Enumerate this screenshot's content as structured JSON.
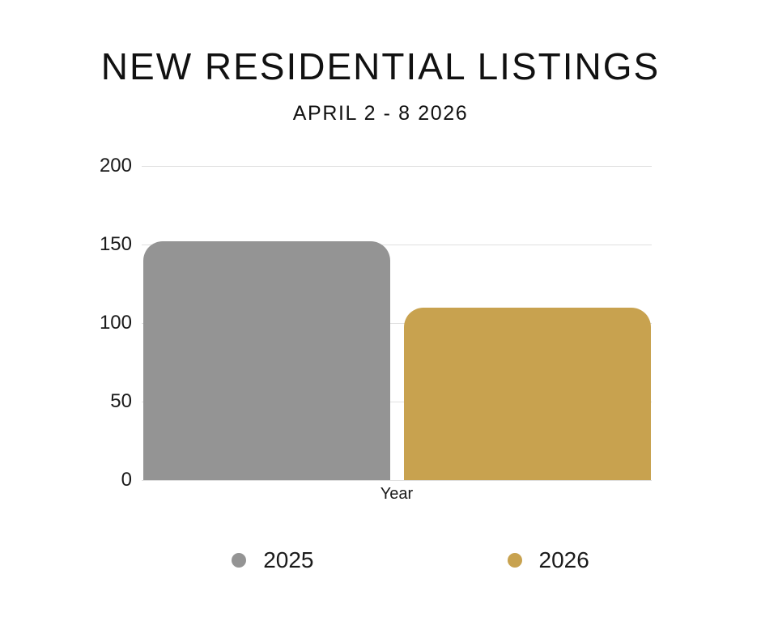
{
  "title": "NEW RESIDENTIAL LISTINGS",
  "subtitle": "APRIL 2 - 8 2026",
  "chart_data": {
    "type": "bar",
    "categories": [
      "Year"
    ],
    "series": [
      {
        "name": "2025",
        "values": [
          152
        ],
        "color": "#949494"
      },
      {
        "name": "2026",
        "values": [
          110
        ],
        "color": "#C8A24F"
      }
    ],
    "title": "NEW RESIDENTIAL LISTINGS",
    "subtitle": "APRIL 2 - 8 2026",
    "xlabel": "Year",
    "ylabel": "",
    "ylim": [
      0,
      200
    ],
    "yticks": [
      200,
      150,
      100,
      50,
      0
    ],
    "grid": true,
    "legend_position": "bottom",
    "gridline_color": "#E0E0E0",
    "background_color": "#FFFFFF",
    "text_color": "#1A1A1A"
  }
}
